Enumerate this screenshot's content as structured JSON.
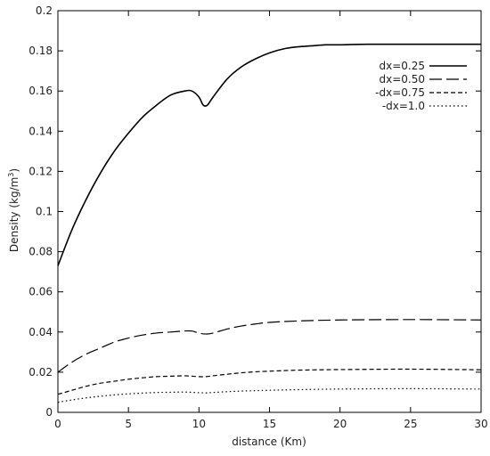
{
  "chart_data": {
    "type": "line",
    "xlabel": "distance (Km)",
    "ylabel_main": "Density (kg/m",
    "ylabel_sup": "3",
    "ylabel_close": ")",
    "xlim": [
      0,
      30
    ],
    "ylim": [
      0,
      0.2
    ],
    "xticks": [
      0,
      5,
      10,
      15,
      20,
      25,
      30
    ],
    "yticks": [
      0,
      0.02,
      0.04,
      0.06,
      0.08,
      0.1,
      0.12,
      0.14,
      0.16,
      0.18,
      0.2
    ],
    "xtick_labels": [
      "0",
      "5",
      "10",
      "15",
      "20",
      "25",
      "30"
    ],
    "ytick_labels": [
      "0",
      "0.02",
      "0.04",
      "0.06",
      "0.08",
      "0.1",
      "0.12",
      "0.14",
      "0.16",
      "0.18",
      "0.2"
    ],
    "grid": false,
    "legend_position": "top-right",
    "series": [
      {
        "name": "dx=0.25",
        "style": "solid",
        "x": [
          0,
          1,
          2,
          3,
          4,
          5,
          6,
          7,
          8,
          9,
          9.5,
          10,
          10.3,
          10.6,
          11,
          12,
          13,
          14,
          15,
          16,
          17,
          18,
          19,
          20,
          22,
          25,
          30
        ],
        "y": [
          0.073,
          0.091,
          0.106,
          0.119,
          0.13,
          0.139,
          0.147,
          0.153,
          0.158,
          0.16,
          0.16,
          0.157,
          0.153,
          0.153,
          0.157,
          0.166,
          0.172,
          0.176,
          0.179,
          0.181,
          0.182,
          0.1825,
          0.183,
          0.183,
          0.1833,
          0.1833,
          0.1833
        ]
      },
      {
        "name": "dx=0.50",
        "style": "long-dash",
        "x": [
          0,
          1,
          2,
          3,
          4,
          5,
          6,
          7,
          8,
          9,
          9.5,
          10,
          10.5,
          11,
          12,
          13,
          14,
          15,
          17,
          20,
          25,
          30
        ],
        "y": [
          0.02,
          0.025,
          0.029,
          0.032,
          0.035,
          0.037,
          0.0385,
          0.0395,
          0.04,
          0.0405,
          0.0405,
          0.0395,
          0.039,
          0.0395,
          0.0415,
          0.043,
          0.044,
          0.0448,
          0.0455,
          0.046,
          0.0462,
          0.046
        ]
      },
      {
        "name": "-dx=0.75",
        "style": "short-dash",
        "x": [
          0,
          1,
          2,
          3,
          4,
          5,
          6,
          7,
          8,
          9,
          10,
          10.5,
          11,
          12,
          13,
          14,
          15,
          17,
          20,
          25,
          30
        ],
        "y": [
          0.009,
          0.011,
          0.013,
          0.0145,
          0.0155,
          0.0165,
          0.0172,
          0.0178,
          0.018,
          0.0182,
          0.0178,
          0.0178,
          0.0182,
          0.019,
          0.0197,
          0.0202,
          0.0205,
          0.021,
          0.0213,
          0.0215,
          0.0212
        ]
      },
      {
        "name": "-dx=1.0",
        "style": "dotted",
        "x": [
          0,
          1,
          2,
          3,
          4,
          5,
          6,
          7,
          8,
          9,
          10,
          10.5,
          11,
          12,
          13,
          14,
          15,
          17,
          20,
          25,
          30
        ],
        "y": [
          0.005,
          0.0062,
          0.0072,
          0.008,
          0.0087,
          0.0092,
          0.0096,
          0.0099,
          0.01,
          0.0101,
          0.0098,
          0.0097,
          0.0099,
          0.0103,
          0.0106,
          0.0108,
          0.011,
          0.0113,
          0.0116,
          0.0118,
          0.0116
        ]
      }
    ]
  }
}
